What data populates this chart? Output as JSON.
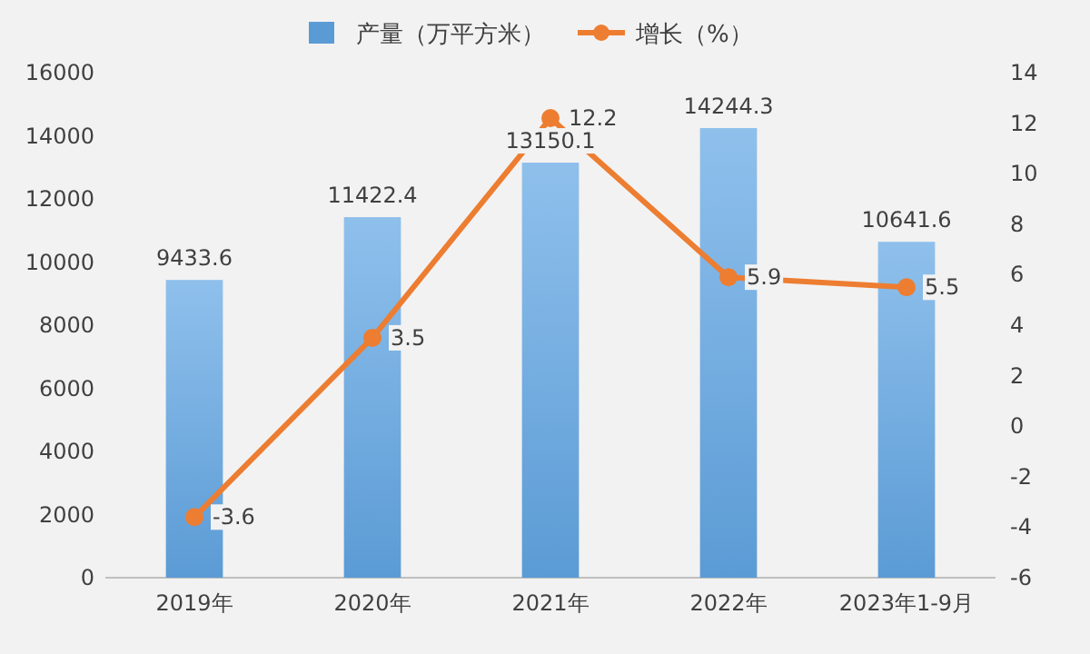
{
  "chart_data": {
    "type": "bar",
    "categories": [
      "2019年",
      "2020年",
      "2021年",
      "2022年",
      "2023年1-9月"
    ],
    "series": [
      {
        "name": "产量（万平方米）",
        "color": "#5b9bd5",
        "values": [
          9433.6,
          11422.4,
          13150.1,
          14244.3,
          10641.6
        ]
      },
      {
        "name": "增长（%）",
        "type": "line",
        "axis": "y2",
        "color": "#ed7d31",
        "marker": "circle",
        "values": [
          -3.6,
          3.5,
          12.2,
          5.9,
          5.5
        ]
      }
    ],
    "ylim": [
      0,
      16000
    ],
    "yticks": [
      0,
      2000,
      4000,
      6000,
      8000,
      10000,
      12000,
      14000,
      16000
    ],
    "y2lim": [
      -6,
      14
    ],
    "y2ticks": [
      -6,
      -4,
      -2,
      0,
      2,
      4,
      6,
      8,
      10,
      12,
      14
    ],
    "data_labels": true,
    "legend": "top",
    "grid": false
  }
}
